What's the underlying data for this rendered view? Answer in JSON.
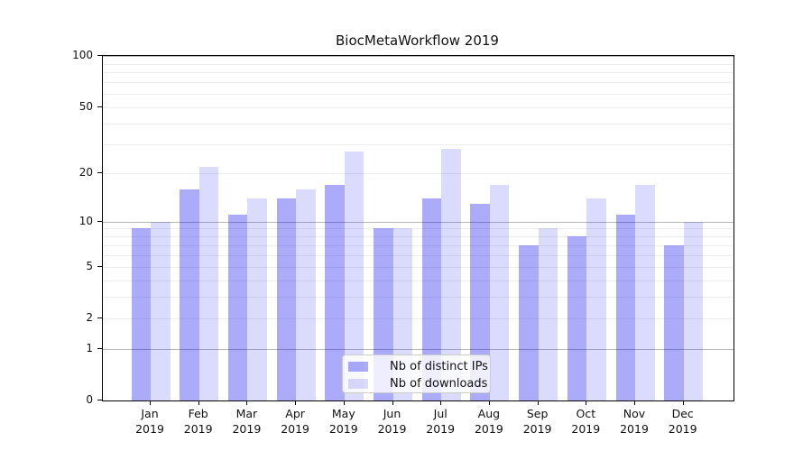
{
  "title": "BiocMetaWorkflow 2019",
  "chart_data": {
    "type": "bar",
    "title": "BiocMetaWorkflow 2019",
    "categories": [
      "Jan 2019",
      "Feb 2019",
      "Mar 2019",
      "Apr 2019",
      "May 2019",
      "Jun 2019",
      "Jul 2019",
      "Aug 2019",
      "Sep 2019",
      "Oct 2019",
      "Nov 2019",
      "Dec 2019"
    ],
    "series": [
      {
        "name": "Nb of distinct IPs",
        "color": "rgba(0,0,240,0.33)",
        "values": [
          9,
          16,
          11,
          14,
          17,
          9,
          14,
          13,
          7,
          8,
          11,
          7
        ]
      },
      {
        "name": "Nb of downloads",
        "color": "rgba(0,0,240,0.14)",
        "values": [
          10,
          22,
          14,
          16,
          27,
          9,
          28,
          17,
          9,
          14,
          17,
          10
        ]
      }
    ],
    "yscale": "log1p",
    "ylim": [
      0,
      100
    ],
    "ytick_values": [
      0,
      1,
      2,
      5,
      10,
      20,
      50,
      100
    ],
    "ytick_labels": [
      "0",
      "1",
      "2",
      "5",
      "10",
      "20",
      "50",
      "100"
    ],
    "major_gridlines": [
      1,
      10,
      100
    ],
    "minor_gridlines": [
      2,
      3,
      4,
      5,
      6,
      7,
      8,
      9,
      20,
      30,
      40,
      50,
      60,
      70,
      80,
      90
    ],
    "grid": true,
    "legend_position": "lower center",
    "xlabel": "",
    "ylabel": ""
  },
  "legend": {
    "items": [
      {
        "label": "Nb of distinct IPs"
      },
      {
        "label": "Nb of downloads"
      }
    ]
  }
}
